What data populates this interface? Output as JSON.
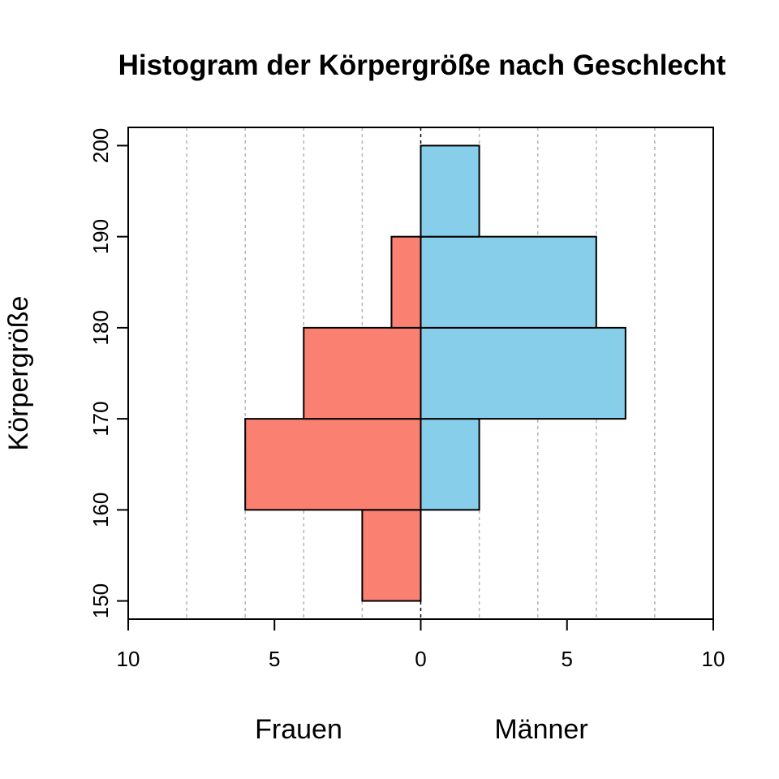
{
  "chart_data": {
    "type": "bar",
    "title": "Histogram der Körpergröße nach Geschlecht",
    "ylabel": "Körpergröße",
    "xlabels": {
      "left": "Frauen",
      "right": "Männer"
    },
    "bin_edges": [
      150,
      160,
      170,
      180,
      190,
      200
    ],
    "y_ticks": [
      150,
      160,
      170,
      180,
      190,
      200
    ],
    "x_ticks": [
      {
        "value": -10,
        "label": "10"
      },
      {
        "value": -5,
        "label": "5"
      },
      {
        "value": 0,
        "label": "0"
      },
      {
        "value": 5,
        "label": "5"
      },
      {
        "value": 10,
        "label": "10"
      }
    ],
    "grid_x": [
      -10,
      -8,
      -6,
      -4,
      -2,
      2,
      4,
      6,
      8,
      10
    ],
    "xlim": [
      -10,
      10
    ],
    "ylim": [
      148,
      202
    ],
    "grid": true,
    "series": [
      {
        "name": "Frauen",
        "side": "left",
        "color": "#FA8072",
        "bins": [
          {
            "from": 150,
            "to": 160,
            "count": 2
          },
          {
            "from": 160,
            "to": 170,
            "count": 6
          },
          {
            "from": 170,
            "to": 180,
            "count": 4
          },
          {
            "from": 180,
            "to": 190,
            "count": 1
          }
        ]
      },
      {
        "name": "Männer",
        "side": "right",
        "color": "#87CEEB",
        "bins": [
          {
            "from": 160,
            "to": 170,
            "count": 2
          },
          {
            "from": 170,
            "to": 180,
            "count": 7
          },
          {
            "from": 180,
            "to": 190,
            "count": 6
          },
          {
            "from": 190,
            "to": 200,
            "count": 2
          }
        ]
      }
    ]
  }
}
